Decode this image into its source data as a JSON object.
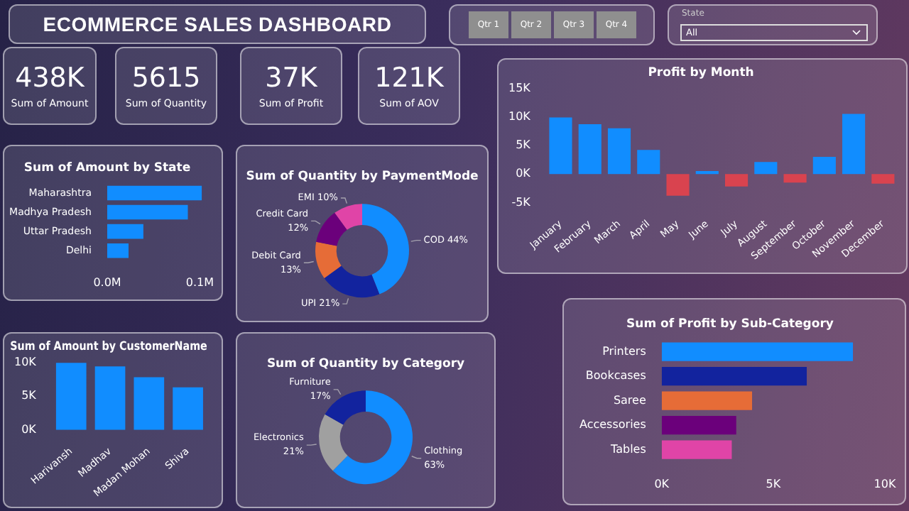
{
  "chart_data": [
    {
      "type": "other",
      "title": "ECOMMERCE SALES DASHBOARD",
      "annotations": [
        "Qtr 1",
        "Qtr 2",
        "Qtr 3",
        "Qtr 4",
        "State",
        "All"
      ]
    },
    {
      "type": "other",
      "categories": [
        "Sum of Amount",
        "Sum of Quantity",
        "Sum of Profit",
        "Sum of AOV"
      ],
      "value_labels": [
        "438K",
        "5615",
        "37K",
        "121K"
      ]
    },
    {
      "type": "bar",
      "title": "Profit by Month",
      "categories": [
        "January",
        "February",
        "March",
        "April",
        "May",
        "June",
        "July",
        "August",
        "September",
        "October",
        "November",
        "December"
      ],
      "values": [
        9900,
        8700,
        8000,
        4200,
        -3800,
        500,
        -2200,
        2100,
        -1500,
        3000,
        10500,
        -1700
      ],
      "colors": [
        "#118dff",
        "#118dff",
        "#118dff",
        "#118dff",
        "#d9434f",
        "#118dff",
        "#d9434f",
        "#118dff",
        "#d9434f",
        "#118dff",
        "#118dff",
        "#d9434f"
      ],
      "ylim": [
        -5000,
        15000
      ],
      "yticks": [
        {
          "value": -5000,
          "label": "-5K"
        },
        {
          "value": 0,
          "label": "0K"
        },
        {
          "value": 5000,
          "label": "5K"
        },
        {
          "value": 10000,
          "label": "10K"
        },
        {
          "value": 15000,
          "label": "15K"
        }
      ],
      "grid": false,
      "legend": false
    },
    {
      "type": "bar",
      "title": "Sum of Amount by State",
      "orientation": "horizontal",
      "categories": [
        "Maharashtra",
        "Madhya Pradesh",
        "Uttar Pradesh",
        "Delhi"
      ],
      "values": [
        102000,
        87000,
        39000,
        23000
      ],
      "color": "#118dff",
      "xlim": [
        0,
        105000
      ],
      "xticks": [
        {
          "value": 0,
          "label": "0.0M"
        },
        {
          "value": 100000,
          "label": "0.1M"
        }
      ],
      "grid": false,
      "legend": false
    },
    {
      "type": "donut",
      "title": "Sum of Quantity by PaymentMode",
      "categories": [
        "COD",
        "UPI",
        "Debit Card",
        "Credit Card",
        "EMI"
      ],
      "values": [
        44,
        21,
        13,
        12,
        10
      ],
      "value_labels": [
        "44%",
        "21%",
        "13%",
        "12%",
        "10%"
      ],
      "colors": [
        "#118dff",
        "#12239e",
        "#e66c37",
        "#6b007b",
        "#e044a7"
      ],
      "legend": false
    },
    {
      "type": "bar",
      "title": "Sum of Amount by CustomerName",
      "categories": [
        "Harivansh",
        "Madhav",
        "Madan Mohan",
        "Shiva"
      ],
      "values": [
        9900,
        9400,
        7800,
        6300
      ],
      "color": "#118dff",
      "ylim": [
        0,
        10000
      ],
      "yticks": [
        {
          "value": 0,
          "label": "0K"
        },
        {
          "value": 5000,
          "label": "5K"
        },
        {
          "value": 10000,
          "label": "10K"
        }
      ],
      "grid": false,
      "legend": false
    },
    {
      "type": "donut",
      "title": "Sum of Quantity by Category",
      "categories": [
        "Clothing",
        "Electronics",
        "Furniture"
      ],
      "values": [
        63,
        21,
        17
      ],
      "value_labels": [
        "63%",
        "21%",
        "17%"
      ],
      "colors": [
        "#118dff",
        "#a0a0a0",
        "#12239e"
      ],
      "legend": false
    },
    {
      "type": "bar",
      "title": "Sum of Profit by Sub-Category",
      "orientation": "horizontal",
      "categories": [
        "Printers",
        "Bookcases",
        "Saree",
        "Accessories",
        "Tables"
      ],
      "values": [
        8570,
        6500,
        4050,
        3340,
        3140
      ],
      "colors": [
        "#118dff",
        "#12239e",
        "#e66c37",
        "#6b007b",
        "#e044a7"
      ],
      "xlim": [
        0,
        10000
      ],
      "xticks": [
        {
          "value": 0,
          "label": "0K"
        },
        {
          "value": 5000,
          "label": "5K"
        },
        {
          "value": 10000,
          "label": "10K"
        }
      ],
      "grid": false,
      "legend": false
    }
  ]
}
